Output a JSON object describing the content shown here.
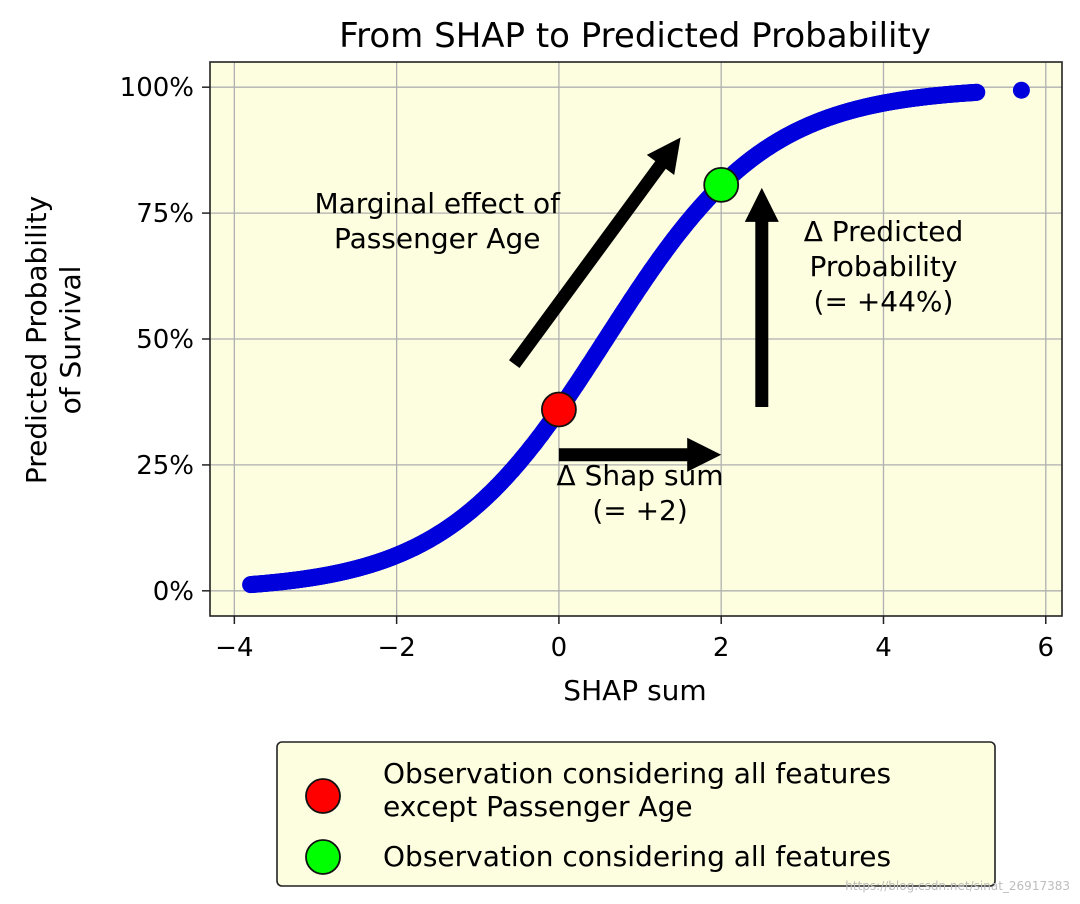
{
  "chart_data": {
    "type": "scatter",
    "title": "From SHAP to Predicted Probability",
    "xlabel": "SHAP sum",
    "ylabel_lines": [
      "Predicted Probability",
      "of Survival"
    ],
    "xlim": [
      -4.3,
      6.2
    ],
    "ylim": [
      -0.05,
      1.05
    ],
    "xticks": [
      {
        "value": -4,
        "label": "−4"
      },
      {
        "value": -2,
        "label": "−2"
      },
      {
        "value": 0,
        "label": "0"
      },
      {
        "value": 2,
        "label": "2"
      },
      {
        "value": 4,
        "label": "4"
      },
      {
        "value": 6,
        "label": "6"
      }
    ],
    "yticks": [
      {
        "value": 0,
        "label": "0%"
      },
      {
        "value": 0.25,
        "label": "25%"
      },
      {
        "value": 0.5,
        "label": "50%"
      },
      {
        "value": 0.75,
        "label": "75%"
      },
      {
        "value": 1.0,
        "label": "100%"
      }
    ],
    "grid": true,
    "background": "#fdfde0",
    "curve": {
      "function": "logistic",
      "x_start": -3.8,
      "x_end": 5.15,
      "color": "#0000dd",
      "extra_points": [
        -3.58,
        -3.52,
        -3.46,
        -3.4,
        -3.3,
        -3.25,
        -3.1,
        -3.02,
        5.7
      ]
    },
    "highlight_points": [
      {
        "name": "Observation considering all features except Passenger Age",
        "x": 0,
        "y": 0.36,
        "color": "#ff0000"
      },
      {
        "name": "Observation considering all features",
        "x": 2,
        "y": 0.806,
        "color": "#00ff00"
      }
    ],
    "arrows": [
      {
        "from": [
          -0.55,
          0.45
        ],
        "to": [
          1.5,
          0.9
        ]
      },
      {
        "from": [
          2.5,
          0.365
        ],
        "to": [
          2.5,
          0.8
        ]
      },
      {
        "from": [
          0,
          0.27
        ],
        "to": [
          2,
          0.27
        ]
      }
    ],
    "annotations": [
      {
        "lines": [
          "Marginal effect of",
          "Passenger Age"
        ],
        "x": -1.5,
        "y": 0.735
      },
      {
        "lines": [
          "Δ Predicted",
          "Probability",
          "(= +44%)"
        ],
        "x": 4.0,
        "y": 0.645
      },
      {
        "lines": [
          "Δ Shap sum",
          "(= +2)"
        ],
        "x": 1.0,
        "y": 0.195
      }
    ],
    "legend": {
      "placement": "bottom",
      "entries": [
        {
          "lines": [
            "Observation considering all features",
            "except Passenger Age"
          ],
          "color": "#ff0000"
        },
        {
          "lines": [
            "Observation considering all features"
          ],
          "color": "#00ff00"
        }
      ]
    }
  },
  "watermark": "https://blog.csdn.net/sinat_26917383"
}
